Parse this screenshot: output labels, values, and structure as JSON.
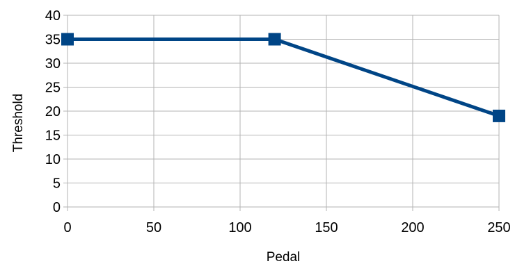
{
  "chart_data": {
    "type": "line",
    "xlabel": "Pedal",
    "ylabel": "Threshold",
    "xlim": [
      0,
      250
    ],
    "ylim": [
      0,
      40
    ],
    "x_ticks": [
      0,
      50,
      100,
      150,
      200,
      250
    ],
    "y_ticks": [
      0,
      5,
      10,
      15,
      20,
      25,
      30,
      35,
      40
    ],
    "grid": true,
    "legend": "none",
    "series": [
      {
        "color": "#004586",
        "marker": "square",
        "points": [
          {
            "x": 0,
            "y": 35
          },
          {
            "x": 120,
            "y": 35
          },
          {
            "x": 250,
            "y": 19
          }
        ]
      }
    ]
  }
}
